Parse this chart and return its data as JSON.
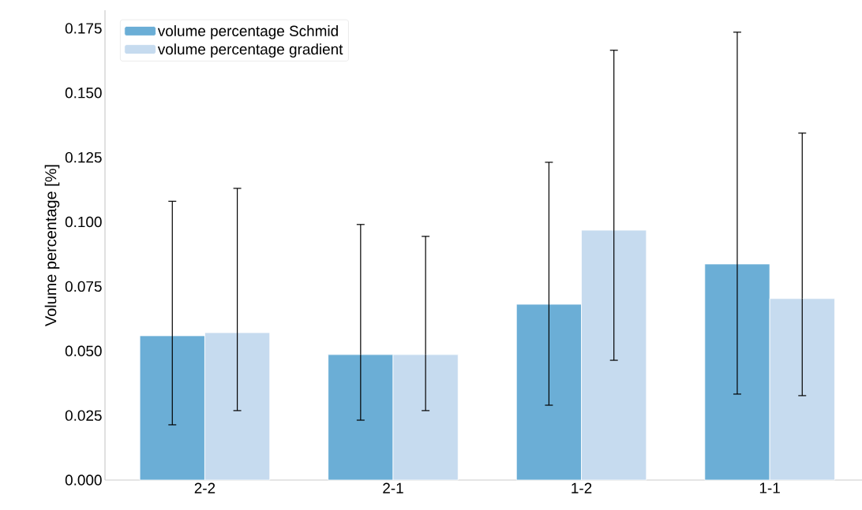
{
  "chart_data": {
    "type": "bar",
    "ylabel": "Volume percentage [%]",
    "categories": [
      "2-2",
      "2-1",
      "1-2",
      "1-1"
    ],
    "series": [
      {
        "name": "volume percentage Schmid",
        "color": "#6baed6",
        "values": [
          0.0559,
          0.0486,
          0.0681,
          0.0837
        ],
        "errors": [
          [
            0.0214,
            0.108
          ],
          [
            0.0232,
            0.099
          ],
          [
            0.029,
            0.1231
          ],
          [
            0.0333,
            0.1735
          ]
        ]
      },
      {
        "name": "volume percentage gradient",
        "color": "#c6dbef",
        "values": [
          0.0571,
          0.0486,
          0.0968,
          0.0703
        ],
        "errors": [
          [
            0.0269,
            0.113
          ],
          [
            0.0269,
            0.0944
          ],
          [
            0.0464,
            0.1665
          ],
          [
            0.0327,
            0.1344
          ]
        ]
      }
    ],
    "ylim": [
      0,
      0.182
    ],
    "yticks": [
      {
        "value": 0,
        "label": "0.000"
      },
      {
        "value": 0.025,
        "label": "0.025"
      },
      {
        "value": 0.05,
        "label": "0.050"
      },
      {
        "value": 0.075,
        "label": "0.075"
      },
      {
        "value": 0.1,
        "label": "0.100"
      },
      {
        "value": 0.125,
        "label": "0.125"
      },
      {
        "value": 0.15,
        "label": "0.150"
      },
      {
        "value": 0.175,
        "label": "0.175"
      }
    ],
    "grid": false,
    "legend": "top left"
  }
}
